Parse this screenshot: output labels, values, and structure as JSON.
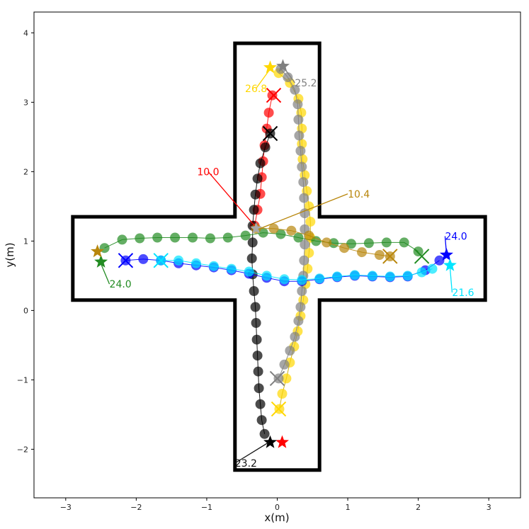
{
  "chart_data": {
    "type": "scatter",
    "xlabel": "x(m)",
    "ylabel": "y(m)",
    "xlim": [
      -3.45,
      3.45
    ],
    "ylim": [
      -2.7,
      4.3
    ],
    "xticks": [
      -3,
      -2,
      -1,
      0,
      1,
      2,
      3
    ],
    "yticks": [
      -2,
      -1,
      0,
      1,
      2,
      3,
      4
    ],
    "grid": false,
    "boundary": [
      [
        -0.6,
        3.85
      ],
      [
        0.6,
        3.85
      ],
      [
        0.6,
        1.35
      ],
      [
        2.95,
        1.35
      ],
      [
        2.95,
        0.15
      ],
      [
        0.6,
        0.15
      ],
      [
        0.6,
        -2.3
      ],
      [
        -0.6,
        -2.3
      ],
      [
        -0.6,
        0.15
      ],
      [
        -2.9,
        0.15
      ],
      [
        -2.9,
        1.35
      ],
      [
        -0.6,
        1.35
      ],
      [
        -0.6,
        3.85
      ]
    ],
    "series": [
      {
        "color": "#ff0000",
        "start": [
          -0.3,
          1.18
        ],
        "end": [
          -0.05,
          3.1
        ],
        "goal": [
          0.07,
          -1.9
        ],
        "points": [
          [
            -0.32,
            1.22
          ],
          [
            -0.28,
            1.45
          ],
          [
            -0.24,
            1.68
          ],
          [
            -0.22,
            1.92
          ],
          [
            -0.2,
            2.15
          ],
          [
            -0.18,
            2.38
          ],
          [
            -0.15,
            2.62
          ],
          [
            -0.12,
            2.85
          ],
          [
            -0.07,
            3.1
          ]
        ]
      },
      {
        "color": "#000000",
        "start": [
          -0.1,
          2.55
        ],
        "end": [
          -0.1,
          2.55
        ],
        "goal": [
          -0.1,
          -1.9
        ],
        "points": [
          [
            -0.1,
            2.55
          ],
          [
            -0.17,
            2.35
          ],
          [
            -0.24,
            2.12
          ],
          [
            -0.28,
            1.9
          ],
          [
            -0.31,
            1.67
          ],
          [
            -0.33,
            1.45
          ],
          [
            -0.35,
            1.22
          ],
          [
            -0.35,
            0.98
          ],
          [
            -0.36,
            0.75
          ],
          [
            -0.35,
            0.52
          ],
          [
            -0.33,
            0.28
          ],
          [
            -0.31,
            0.05
          ],
          [
            -0.3,
            -0.18
          ],
          [
            -0.29,
            -0.42
          ],
          [
            -0.28,
            -0.65
          ],
          [
            -0.27,
            -0.88
          ],
          [
            -0.26,
            -1.12
          ],
          [
            -0.24,
            -1.35
          ],
          [
            -0.22,
            -1.58
          ],
          [
            -0.18,
            -1.78
          ]
        ]
      },
      {
        "color": "#ffd700",
        "start": [
          -0.1,
          3.5
        ],
        "end": [
          0.02,
          -1.42
        ],
        "goal": [
          -0.1,
          3.5
        ],
        "points": [
          [
            0.03,
            -1.42
          ],
          [
            0.07,
            -1.2
          ],
          [
            0.13,
            -0.98
          ],
          [
            0.18,
            -0.75
          ],
          [
            0.24,
            -0.52
          ],
          [
            0.29,
            -0.3
          ],
          [
            0.33,
            -0.08
          ],
          [
            0.37,
            0.15
          ],
          [
            0.4,
            0.38
          ],
          [
            0.43,
            0.6
          ],
          [
            0.45,
            0.83
          ],
          [
            0.47,
            1.05
          ],
          [
            0.47,
            1.28
          ],
          [
            0.45,
            1.5
          ],
          [
            0.42,
            1.72
          ],
          [
            0.39,
            1.95
          ],
          [
            0.36,
            2.18
          ],
          [
            0.35,
            2.4
          ],
          [
            0.35,
            2.62
          ],
          [
            0.34,
            2.85
          ],
          [
            0.3,
            3.05
          ],
          [
            0.18,
            3.28
          ],
          [
            0.02,
            3.42
          ]
        ]
      },
      {
        "color": "#808080",
        "start": [
          0.08,
          3.52
        ],
        "end": [
          0.0,
          -0.98
        ],
        "goal": [
          0.08,
          3.52
        ],
        "points": [
          [
            0.02,
            -0.98
          ],
          [
            0.1,
            -0.78
          ],
          [
            0.18,
            -0.58
          ],
          [
            0.25,
            -0.38
          ],
          [
            0.3,
            -0.15
          ],
          [
            0.33,
            0.05
          ],
          [
            0.35,
            0.28
          ],
          [
            0.37,
            0.5
          ],
          [
            0.38,
            0.72
          ],
          [
            0.39,
            0.95
          ],
          [
            0.39,
            1.17
          ],
          [
            0.39,
            1.4
          ],
          [
            0.38,
            1.62
          ],
          [
            0.37,
            1.85
          ],
          [
            0.35,
            2.07
          ],
          [
            0.33,
            2.3
          ],
          [
            0.31,
            2.52
          ],
          [
            0.3,
            2.75
          ],
          [
            0.29,
            2.97
          ],
          [
            0.25,
            3.18
          ],
          [
            0.15,
            3.36
          ],
          [
            0.05,
            3.48
          ]
        ]
      },
      {
        "color": "#228b22",
        "start": [
          -2.5,
          0.7
        ],
        "end": [
          2.05,
          0.78
        ],
        "goal": [
          -2.5,
          0.7
        ],
        "points": [
          [
            -2.45,
            0.9
          ],
          [
            -2.2,
            1.02
          ],
          [
            -1.95,
            1.04
          ],
          [
            -1.7,
            1.05
          ],
          [
            -1.45,
            1.05
          ],
          [
            -1.2,
            1.05
          ],
          [
            -0.95,
            1.04
          ],
          [
            -0.7,
            1.05
          ],
          [
            -0.45,
            1.08
          ],
          [
            -0.2,
            1.12
          ],
          [
            0.05,
            1.1
          ],
          [
            0.3,
            1.05
          ],
          [
            0.55,
            1.0
          ],
          [
            0.8,
            0.97
          ],
          [
            1.05,
            0.96
          ],
          [
            1.3,
            0.97
          ],
          [
            1.55,
            0.98
          ],
          [
            1.8,
            0.98
          ],
          [
            2.0,
            0.85
          ]
        ]
      },
      {
        "color": "#0000ff",
        "start": [
          -2.15,
          0.72
        ],
        "end": [
          -2.15,
          0.72
        ],
        "goal": [
          2.4,
          0.8
        ],
        "points": [
          [
            -2.15,
            0.72
          ],
          [
            -1.9,
            0.74
          ],
          [
            -1.65,
            0.72
          ],
          [
            -1.4,
            0.68
          ],
          [
            -1.15,
            0.65
          ],
          [
            -0.9,
            0.62
          ],
          [
            -0.65,
            0.58
          ],
          [
            -0.4,
            0.53
          ],
          [
            -0.15,
            0.47
          ],
          [
            0.1,
            0.42
          ],
          [
            0.35,
            0.42
          ],
          [
            0.6,
            0.45
          ],
          [
            0.85,
            0.48
          ],
          [
            1.1,
            0.5
          ],
          [
            1.35,
            0.49
          ],
          [
            1.6,
            0.48
          ],
          [
            1.85,
            0.49
          ],
          [
            2.1,
            0.58
          ],
          [
            2.3,
            0.72
          ]
        ]
      },
      {
        "color": "#00e5ff",
        "start": [
          2.45,
          0.65
        ],
        "end": [
          -1.65,
          0.72
        ],
        "goal": [
          2.45,
          0.65
        ],
        "points": [
          [
            -1.65,
            0.72
          ],
          [
            -1.4,
            0.72
          ],
          [
            -1.15,
            0.68
          ],
          [
            -0.9,
            0.64
          ],
          [
            -0.65,
            0.6
          ],
          [
            -0.4,
            0.56
          ],
          [
            -0.15,
            0.5
          ],
          [
            0.1,
            0.45
          ],
          [
            0.35,
            0.44
          ],
          [
            0.6,
            0.46
          ],
          [
            0.85,
            0.49
          ],
          [
            1.1,
            0.51
          ],
          [
            1.35,
            0.5
          ],
          [
            1.6,
            0.49
          ],
          [
            1.85,
            0.5
          ],
          [
            2.05,
            0.55
          ],
          [
            2.2,
            0.6
          ]
        ]
      },
      {
        "color": "#b8860b",
        "start": [
          -2.55,
          0.85
        ],
        "end": [
          1.6,
          0.78
        ],
        "goal": [
          -2.55,
          0.85
        ],
        "points": [
          [
            -0.3,
            1.18
          ],
          [
            -0.05,
            1.18
          ],
          [
            0.2,
            1.15
          ],
          [
            0.45,
            1.08
          ],
          [
            0.7,
            0.98
          ],
          [
            0.95,
            0.9
          ],
          [
            1.2,
            0.84
          ],
          [
            1.45,
            0.8
          ],
          [
            1.6,
            0.78
          ]
        ]
      }
    ],
    "center_star": {
      "color": "#a9a9a9",
      "pos": [
        -0.3,
        1.18
      ]
    },
    "annotations": [
      {
        "text": "10.0",
        "color": "#ff0000",
        "pos": [
          -0.98,
          2.0
        ],
        "target": [
          -0.32,
          1.22
        ],
        "anchor": "middle"
      },
      {
        "text": "10.4",
        "color": "#b8860b",
        "pos": [
          1.0,
          1.68
        ],
        "target": [
          -0.27,
          1.17
        ],
        "anchor": "start"
      },
      {
        "text": "26.8",
        "color": "#ffd700",
        "pos": [
          -0.3,
          3.2
        ],
        "target": [
          -0.1,
          3.48
        ],
        "anchor": "middle"
      },
      {
        "text": "25.2",
        "color": "#808080",
        "pos": [
          0.25,
          3.28
        ],
        "target": [
          0.08,
          3.52
        ],
        "anchor": "start"
      },
      {
        "text": "24.0",
        "color": "#228b22",
        "pos": [
          -2.38,
          0.38
        ],
        "target": [
          -2.52,
          0.72
        ],
        "anchor": "start"
      },
      {
        "text": "24.0",
        "color": "#0000ff",
        "pos": [
          2.38,
          1.07
        ],
        "target": [
          2.4,
          0.82
        ],
        "anchor": "start"
      },
      {
        "text": "21.6",
        "color": "#00e5ff",
        "pos": [
          2.48,
          0.26
        ],
        "target": [
          2.45,
          0.62
        ],
        "anchor": "start"
      },
      {
        "text": "23.2",
        "color": "#111111",
        "pos": [
          -0.6,
          -2.2
        ],
        "target": [
          -0.12,
          -1.9
        ],
        "anchor": "start"
      }
    ]
  }
}
